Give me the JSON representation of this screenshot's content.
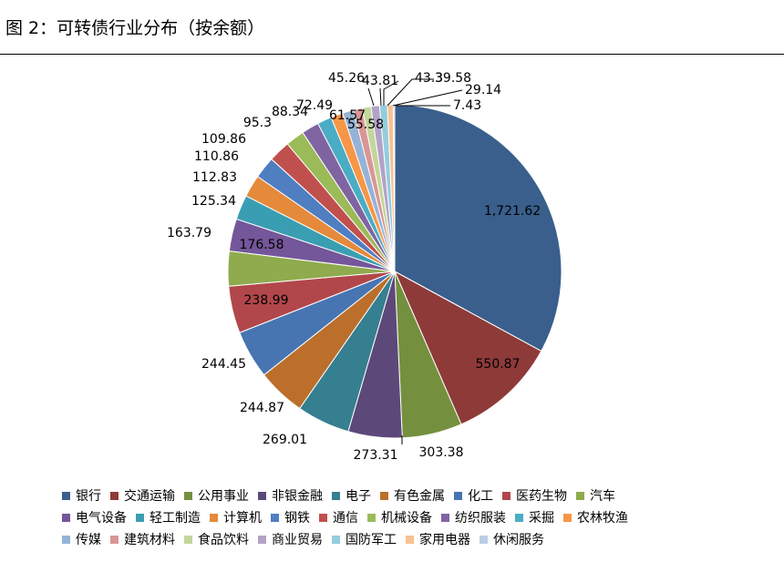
{
  "title": "图 2：可转债行业分布（按余额）",
  "chart_data": {
    "type": "pie",
    "categories": [
      "银行",
      "交通运输",
      "公用事业",
      "非银金融",
      "电子",
      "有色金属",
      "化工",
      "医药生物",
      "汽车",
      "电气设备",
      "轻工制造",
      "计算机",
      "钢铁",
      "通信",
      "机械设备",
      "纺织服装",
      "采掘",
      "农林牧渔",
      "传媒",
      "建筑材料",
      "食品饮料",
      "商业贸易",
      "国防军工",
      "家用电器",
      "休闲服务"
    ],
    "values": [
      1721.62,
      550.87,
      303.38,
      273.31,
      269.01,
      244.87,
      244.45,
      238.99,
      176.58,
      163.79,
      125.34,
      112.83,
      110.86,
      109.86,
      95.3,
      88.34,
      72.49,
      61.57,
      55.58,
      45.26,
      43.81,
      43.3,
      39.58,
      29.14,
      7.43
    ],
    "value_labels": [
      "1,721.62",
      "550.87",
      "303.38",
      "273.31",
      "269.01",
      "244.87",
      "244.45",
      "238.99",
      "176.58",
      "163.79",
      "125.34",
      "112.83",
      "110.86",
      "109.86",
      "95.3",
      "88.34",
      "72.49",
      "61.57",
      "55.58",
      "45.26",
      "43.81",
      "43.3",
      "39.58",
      "29.14",
      "7.43"
    ],
    "colors": [
      "#3a5f8c",
      "#8e3a38",
      "#74903e",
      "#5d487a",
      "#357f90",
      "#bb6f2b",
      "#4775b2",
      "#b1474a",
      "#8fab4d",
      "#74569a",
      "#3a9eb2",
      "#e5893a",
      "#4f7ec1",
      "#c0504d",
      "#9bbb59",
      "#8064a2",
      "#4bacc6",
      "#f79646",
      "#95b3d7",
      "#d99694",
      "#c3d69b",
      "#b3a2c7",
      "#93cddd",
      "#fac090",
      "#b9cde5"
    ],
    "legend_position": "bottom"
  }
}
